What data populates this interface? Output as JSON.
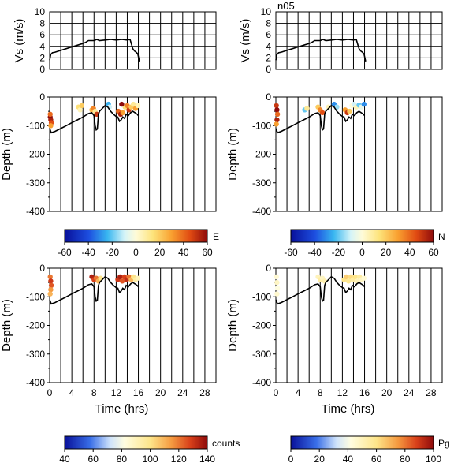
{
  "figure_label": "n05",
  "colors": {
    "line": "#000000",
    "grid": "#000000",
    "background": "#ffffff"
  },
  "chart_data": [
    {
      "type": "line",
      "panel": "speed-left",
      "title": "",
      "xlabel": "",
      "ylabel": "Vs (m/s)",
      "xlim": [
        0,
        30
      ],
      "ylim": [
        0,
        10
      ],
      "yticks": [
        "0",
        "2",
        "4",
        "6",
        "8",
        "10"
      ],
      "series": [
        {
          "x": [
            0.0,
            0.2,
            0.5,
            1,
            2,
            3,
            4,
            5,
            6,
            6.5,
            7,
            7.5,
            8,
            8.5,
            9,
            10,
            11,
            12,
            13,
            14,
            14.5,
            15,
            15.3,
            15.6,
            15.9,
            16.2
          ],
          "y": [
            1.6,
            2.6,
            2.9,
            3.0,
            3.3,
            3.6,
            3.9,
            4.2,
            4.5,
            4.7,
            5.0,
            5.0,
            5.0,
            5.2,
            5.0,
            5.1,
            5.2,
            5.1,
            5.2,
            5.1,
            5.2,
            3.6,
            3.2,
            3.0,
            2.7,
            1.4
          ]
        }
      ]
    },
    {
      "type": "line",
      "panel": "speed-right",
      "title": "",
      "xlabel": "",
      "ylabel": "Vs (m/s)",
      "xlim": [
        0,
        30
      ],
      "ylim": [
        0,
        10
      ],
      "yticks": [
        "0",
        "2",
        "4",
        "6",
        "8",
        "10"
      ],
      "series": [
        {
          "x": [
            0.0,
            0.2,
            0.5,
            1,
            2,
            3,
            4,
            5,
            6,
            6.5,
            7,
            7.5,
            8,
            8.5,
            9,
            10,
            11,
            12,
            13,
            14,
            14.5,
            15,
            15.3,
            15.6,
            15.9,
            16.2
          ],
          "y": [
            1.6,
            2.6,
            2.9,
            3.0,
            3.3,
            3.6,
            3.9,
            4.2,
            4.5,
            4.7,
            5.0,
            5.0,
            5.0,
            5.2,
            5.0,
            5.1,
            5.2,
            5.1,
            5.2,
            5.1,
            5.2,
            3.6,
            3.2,
            3.0,
            2.7,
            1.4
          ]
        }
      ]
    },
    {
      "type": "scatter",
      "panel": "depth-E",
      "ylabel": "Depth (m)",
      "xlim": [
        0,
        30
      ],
      "ylim": [
        -400,
        0
      ],
      "yticks": [
        "0",
        "-100",
        "-200",
        "-300",
        "-400"
      ],
      "colorbar": {
        "label": "E",
        "min": -60,
        "max": 60,
        "ticks": [
          "-60",
          "-40",
          "-20",
          "0",
          "20",
          "40",
          "60"
        ]
      },
      "bottom_profile": {
        "x": [
          0,
          0.3,
          1,
          2,
          3,
          4,
          5,
          6,
          7,
          7.6,
          8,
          8.2,
          8.4,
          8.6,
          8.8,
          9,
          9.5,
          10,
          10.5,
          11,
          11.5,
          12,
          12.3,
          12.6,
          12.9,
          13.2,
          13.5,
          13.8,
          14.2,
          14.6,
          15,
          15.4,
          15.8,
          16
        ],
        "y": [
          -110,
          -125,
          -120,
          -110,
          -100,
          -90,
          -80,
          -70,
          -58,
          -55,
          -65,
          -100,
          -115,
          -112,
          -60,
          -50,
          -40,
          -30,
          -35,
          -50,
          -60,
          -68,
          -70,
          -85,
          -80,
          -70,
          -75,
          -60,
          -65,
          -55,
          -50,
          -55,
          -60,
          -65
        ]
      },
      "points": [
        {
          "x": 0.1,
          "y": -70,
          "v": 60
        },
        {
          "x": 0.2,
          "y": -80,
          "v": 55
        },
        {
          "x": 0.3,
          "y": -90,
          "v": 45
        },
        {
          "x": 0.2,
          "y": -100,
          "v": 30
        },
        {
          "x": 0.1,
          "y": -60,
          "v": 40
        },
        {
          "x": 5.2,
          "y": -35,
          "v": 15
        },
        {
          "x": 5.5,
          "y": -45,
          "v": 5
        },
        {
          "x": 5.8,
          "y": -30,
          "v": 20
        },
        {
          "x": 7.6,
          "y": -45,
          "v": 25
        },
        {
          "x": 7.9,
          "y": -40,
          "v": 35
        },
        {
          "x": 8.2,
          "y": -50,
          "v": 10
        },
        {
          "x": 8.5,
          "y": -60,
          "v": 50
        },
        {
          "x": 10.6,
          "y": -25,
          "v": -25
        },
        {
          "x": 10.8,
          "y": -35,
          "v": -10
        },
        {
          "x": 12.4,
          "y": -50,
          "v": 40
        },
        {
          "x": 12.8,
          "y": -60,
          "v": 55
        },
        {
          "x": 13.2,
          "y": -55,
          "v": 30
        },
        {
          "x": 13.6,
          "y": -35,
          "v": 15
        },
        {
          "x": 14.0,
          "y": -30,
          "v": 35
        },
        {
          "x": 14.3,
          "y": -45,
          "v": 50
        },
        {
          "x": 14.7,
          "y": -35,
          "v": 20
        },
        {
          "x": 15.1,
          "y": -25,
          "v": 10
        },
        {
          "x": 15.5,
          "y": -40,
          "v": 30
        },
        {
          "x": 15.9,
          "y": -30,
          "v": 5
        },
        {
          "x": 13.0,
          "y": -25,
          "v": 60
        }
      ]
    },
    {
      "type": "scatter",
      "panel": "depth-N",
      "ylabel": "Depth (m)",
      "xlim": [
        0,
        30
      ],
      "ylim": [
        -400,
        0
      ],
      "yticks": [
        "0",
        "-100",
        "-200",
        "-300",
        "-400"
      ],
      "colorbar": {
        "label": "N",
        "min": -60,
        "max": 60,
        "ticks": [
          "-60",
          "-40",
          "-20",
          "0",
          "20",
          "40",
          "60"
        ]
      },
      "bottom_profile": {
        "x": [
          0,
          0.3,
          1,
          2,
          3,
          4,
          5,
          6,
          7,
          7.6,
          8,
          8.2,
          8.4,
          8.6,
          8.8,
          9,
          9.5,
          10,
          10.5,
          11,
          11.5,
          12,
          12.3,
          12.6,
          12.9,
          13.2,
          13.5,
          13.8,
          14.2,
          14.6,
          15,
          15.4,
          15.8,
          16
        ],
        "y": [
          -110,
          -125,
          -120,
          -110,
          -100,
          -90,
          -80,
          -70,
          -58,
          -55,
          -65,
          -100,
          -115,
          -112,
          -60,
          -50,
          -40,
          -30,
          -35,
          -50,
          -60,
          -68,
          -70,
          -85,
          -80,
          -70,
          -75,
          -60,
          -65,
          -55,
          -50,
          -55,
          -60,
          -65
        ]
      },
      "points": [
        {
          "x": 0.1,
          "y": -30,
          "v": 50
        },
        {
          "x": 0.2,
          "y": -45,
          "v": 60
        },
        {
          "x": 0.3,
          "y": -60,
          "v": 40
        },
        {
          "x": 0.2,
          "y": -80,
          "v": 55
        },
        {
          "x": 0.1,
          "y": -95,
          "v": 30
        },
        {
          "x": 5.2,
          "y": -45,
          "v": -20
        },
        {
          "x": 5.6,
          "y": -40,
          "v": 10
        },
        {
          "x": 7.6,
          "y": -35,
          "v": 20
        },
        {
          "x": 8.0,
          "y": -45,
          "v": 35
        },
        {
          "x": 8.4,
          "y": -55,
          "v": 45
        },
        {
          "x": 9.5,
          "y": -35,
          "v": 5
        },
        {
          "x": 10.5,
          "y": -25,
          "v": -30
        },
        {
          "x": 11.0,
          "y": -35,
          "v": -15
        },
        {
          "x": 12.5,
          "y": -45,
          "v": 30
        },
        {
          "x": 12.9,
          "y": -55,
          "v": 50
        },
        {
          "x": 13.3,
          "y": -50,
          "v": 20
        },
        {
          "x": 13.7,
          "y": -30,
          "v": 0
        },
        {
          "x": 14.1,
          "y": -25,
          "v": -10
        },
        {
          "x": 14.5,
          "y": -35,
          "v": 5
        },
        {
          "x": 15.0,
          "y": -28,
          "v": -20
        },
        {
          "x": 15.4,
          "y": -35,
          "v": -5
        },
        {
          "x": 15.9,
          "y": -25,
          "v": -30
        }
      ]
    },
    {
      "type": "scatter",
      "panel": "depth-counts",
      "ylabel": "Depth (m)",
      "xlabel": "Time (hrs)",
      "xlim": [
        0,
        30
      ],
      "ylim": [
        -400,
        0
      ],
      "xticks": [
        "0",
        "4",
        "8",
        "12",
        "16",
        "20",
        "24",
        "28"
      ],
      "yticks": [
        "0",
        "-100",
        "-200",
        "-300",
        "-400"
      ],
      "colorbar": {
        "label": "counts",
        "min": 40,
        "max": 140,
        "ticks": [
          "40",
          "60",
          "80",
          "100",
          "120",
          "140"
        ]
      },
      "bottom_profile": {
        "x": [
          0,
          0.3,
          1,
          2,
          3,
          4,
          5,
          6,
          7,
          7.6,
          8,
          8.2,
          8.4,
          8.6,
          8.8,
          9,
          9.5,
          10,
          10.5,
          11,
          11.5,
          12,
          12.3,
          12.6,
          12.9,
          13.2,
          13.5,
          13.8,
          14.2,
          14.6,
          15,
          15.4,
          15.8,
          16
        ],
        "y": [
          -110,
          -125,
          -120,
          -110,
          -100,
          -90,
          -80,
          -70,
          -58,
          -55,
          -65,
          -100,
          -115,
          -112,
          -60,
          -50,
          -40,
          -30,
          -35,
          -50,
          -60,
          -68,
          -70,
          -85,
          -80,
          -70,
          -75,
          -60,
          -65,
          -55,
          -50,
          -55,
          -60,
          -65
        ]
      },
      "points": [
        {
          "x": 0.1,
          "y": -30,
          "v": 120
        },
        {
          "x": 0.2,
          "y": -45,
          "v": 130
        },
        {
          "x": 0.3,
          "y": -60,
          "v": 125
        },
        {
          "x": 0.2,
          "y": -75,
          "v": 115
        },
        {
          "x": 0.1,
          "y": -90,
          "v": 110
        },
        {
          "x": 7.6,
          "y": -30,
          "v": 135
        },
        {
          "x": 8.0,
          "y": -40,
          "v": 128
        },
        {
          "x": 8.4,
          "y": -35,
          "v": 120
        },
        {
          "x": 8.8,
          "y": -45,
          "v": 110
        },
        {
          "x": 9.2,
          "y": -35,
          "v": 100
        },
        {
          "x": 12.3,
          "y": -40,
          "v": 130
        },
        {
          "x": 12.7,
          "y": -30,
          "v": 135
        },
        {
          "x": 13.1,
          "y": -45,
          "v": 125
        },
        {
          "x": 13.5,
          "y": -30,
          "v": 128
        },
        {
          "x": 13.9,
          "y": -40,
          "v": 132
        },
        {
          "x": 14.3,
          "y": -30,
          "v": 120
        },
        {
          "x": 14.7,
          "y": -40,
          "v": 110
        },
        {
          "x": 15.1,
          "y": -30,
          "v": 100
        },
        {
          "x": 15.5,
          "y": -40,
          "v": 95
        },
        {
          "x": 15.9,
          "y": -35,
          "v": 90
        }
      ]
    },
    {
      "type": "scatter",
      "panel": "depth-Pg",
      "ylabel": "Depth (m)",
      "xlabel": "Time (hrs)",
      "xlim": [
        0,
        30
      ],
      "ylim": [
        -400,
        0
      ],
      "xticks": [
        "0",
        "4",
        "8",
        "12",
        "16",
        "20",
        "24",
        "28"
      ],
      "yticks": [
        "0",
        "-100",
        "-200",
        "-300",
        "-400"
      ],
      "colorbar": {
        "label": "Pg",
        "min": 0,
        "max": 100,
        "ticks": [
          "0",
          "20",
          "40",
          "60",
          "80",
          "100"
        ]
      },
      "bottom_profile": {
        "x": [
          0,
          0.3,
          1,
          2,
          3,
          4,
          5,
          6,
          7,
          7.6,
          8,
          8.2,
          8.4,
          8.6,
          8.8,
          9,
          9.5,
          10,
          10.5,
          11,
          11.5,
          12,
          12.3,
          12.6,
          12.9,
          13.2,
          13.5,
          13.8,
          14.2,
          14.6,
          15,
          15.4,
          15.8,
          16
        ],
        "y": [
          -110,
          -125,
          -120,
          -110,
          -100,
          -90,
          -80,
          -70,
          -58,
          -55,
          -65,
          -100,
          -115,
          -112,
          -60,
          -50,
          -40,
          -30,
          -35,
          -50,
          -60,
          -68,
          -70,
          -85,
          -80,
          -70,
          -75,
          -60,
          -65,
          -55,
          -50,
          -55,
          -60,
          -65
        ]
      },
      "points": [
        {
          "x": 0.1,
          "y": -30,
          "v": 45
        },
        {
          "x": 0.2,
          "y": -50,
          "v": 48
        },
        {
          "x": 0.3,
          "y": -70,
          "v": 42
        },
        {
          "x": 0.2,
          "y": -90,
          "v": 46
        },
        {
          "x": 7.6,
          "y": -30,
          "v": 50
        },
        {
          "x": 8.0,
          "y": -40,
          "v": 55
        },
        {
          "x": 8.4,
          "y": -35,
          "v": 48
        },
        {
          "x": 8.8,
          "y": -45,
          "v": 52
        },
        {
          "x": 12.3,
          "y": -40,
          "v": 60
        },
        {
          "x": 12.7,
          "y": -30,
          "v": 65
        },
        {
          "x": 13.1,
          "y": -45,
          "v": 58
        },
        {
          "x": 13.5,
          "y": -30,
          "v": 62
        },
        {
          "x": 13.9,
          "y": -40,
          "v": 55
        },
        {
          "x": 14.3,
          "y": -30,
          "v": 60
        },
        {
          "x": 14.7,
          "y": -45,
          "v": 50
        },
        {
          "x": 15.1,
          "y": -30,
          "v": 55
        },
        {
          "x": 15.5,
          "y": -40,
          "v": 48
        },
        {
          "x": 15.9,
          "y": -35,
          "v": 45
        }
      ]
    }
  ]
}
